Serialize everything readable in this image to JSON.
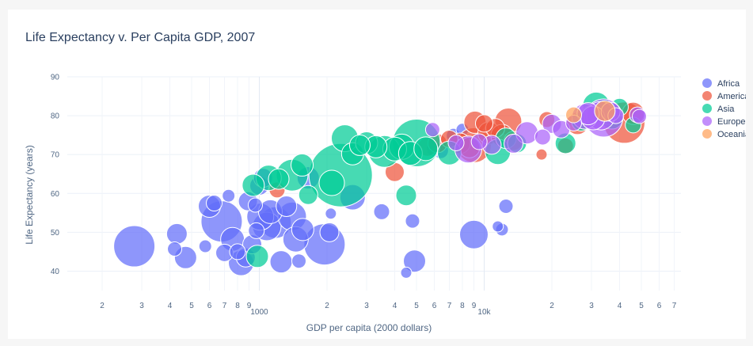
{
  "chart_data": {
    "type": "scatter",
    "title": "Life Expectancy v. Per Capita GDP, 2007",
    "xlabel": "GDP per capita (2000 dollars)",
    "ylabel": "Life Expectancy (years)",
    "x_scale": "log",
    "xlim": [
      140,
      75000
    ],
    "ylim": [
      35,
      90
    ],
    "grid": true,
    "legend_position": "right",
    "x_tick_labels": [
      {
        "v": 200,
        "t": "2"
      },
      {
        "v": 300,
        "t": "3"
      },
      {
        "v": 400,
        "t": "4"
      },
      {
        "v": 500,
        "t": "5"
      },
      {
        "v": 600,
        "t": "6"
      },
      {
        "v": 700,
        "t": "7"
      },
      {
        "v": 800,
        "t": "8"
      },
      {
        "v": 900,
        "t": "9"
      },
      {
        "v": 1000,
        "t": "1000"
      },
      {
        "v": 2000,
        "t": "2"
      },
      {
        "v": 3000,
        "t": "3"
      },
      {
        "v": 4000,
        "t": "4"
      },
      {
        "v": 5000,
        "t": "5"
      },
      {
        "v": 6000,
        "t": "6"
      },
      {
        "v": 7000,
        "t": "7"
      },
      {
        "v": 8000,
        "t": "8"
      },
      {
        "v": 9000,
        "t": "9"
      },
      {
        "v": 10000,
        "t": "10k"
      },
      {
        "v": 20000,
        "t": "2"
      },
      {
        "v": 30000,
        "t": "3"
      },
      {
        "v": 40000,
        "t": "4"
      },
      {
        "v": 50000,
        "t": "5"
      },
      {
        "v": 60000,
        "t": "6"
      },
      {
        "v": 70000,
        "t": "7"
      }
    ],
    "y_ticks": [
      40,
      50,
      60,
      70,
      80,
      90
    ],
    "series": [
      {
        "name": "Africa",
        "color": "#636efa",
        "points": [
          [
            278,
            46.4,
            26
          ],
          [
            420,
            45.7,
            9
          ],
          [
            430,
            49.6,
            13
          ],
          [
            470,
            43.5,
            14
          ],
          [
            575,
            46.4,
            8
          ],
          [
            600,
            56.7,
            14
          ],
          [
            630,
            57.5,
            10
          ],
          [
            680,
            52.8,
            26
          ],
          [
            700,
            44.7,
            11
          ],
          [
            730,
            59.4,
            8
          ],
          [
            760,
            48.2,
            15
          ],
          [
            800,
            45.0,
            10
          ],
          [
            830,
            42.1,
            16
          ],
          [
            870,
            43.5,
            12
          ],
          [
            890,
            58.0,
            12
          ],
          [
            930,
            46.9,
            12
          ],
          [
            960,
            57.0,
            9
          ],
          [
            970,
            50.4,
            10
          ],
          [
            1000,
            62.0,
            12
          ],
          [
            1010,
            54.0,
            17
          ],
          [
            1040,
            64.0,
            12
          ],
          [
            1080,
            51.5,
            18
          ],
          [
            1120,
            55.3,
            15
          ],
          [
            1180,
            52.5,
            20
          ],
          [
            1250,
            42.4,
            14
          ],
          [
            1320,
            56.7,
            13
          ],
          [
            1400,
            54.1,
            18
          ],
          [
            1450,
            48.2,
            16
          ],
          [
            1500,
            42.6,
            9
          ],
          [
            1560,
            50.7,
            14
          ],
          [
            1650,
            64.0,
            14
          ],
          [
            1950,
            46.9,
            26
          ],
          [
            2050,
            50.0,
            12
          ],
          [
            2080,
            54.8,
            7
          ],
          [
            2600,
            59.0,
            16
          ],
          [
            3500,
            55.3,
            10
          ],
          [
            4500,
            39.6,
            7
          ],
          [
            4800,
            52.9,
            9
          ],
          [
            4900,
            42.6,
            14
          ],
          [
            9000,
            49.4,
            18
          ],
          [
            11500,
            51.5,
            7
          ],
          [
            12000,
            50.7,
            8
          ],
          [
            12500,
            56.7,
            9
          ],
          [
            6000,
            71.5,
            10
          ],
          [
            7300,
            74.9,
            9
          ],
          [
            8000,
            76.4,
            8
          ],
          [
            6400,
            71.0,
            10
          ]
        ]
      },
      {
        "name": "Americas",
        "color": "#ef553b",
        "points": [
          [
            1200,
            60.9,
            10
          ],
          [
            4000,
            65.5,
            12
          ],
          [
            5600,
            72.0,
            12
          ],
          [
            6200,
            72.9,
            12
          ],
          [
            7000,
            74.0,
            11
          ],
          [
            7800,
            72.9,
            13
          ],
          [
            8600,
            71.8,
            13
          ],
          [
            9000,
            72.4,
            22
          ],
          [
            9100,
            78.3,
            14
          ],
          [
            10000,
            78.0,
            11
          ],
          [
            10500,
            75.5,
            14
          ],
          [
            11200,
            76.8,
            12
          ],
          [
            12000,
            74.9,
            14
          ],
          [
            12800,
            78.5,
            17
          ],
          [
            13500,
            73.5,
            12
          ],
          [
            18000,
            70.0,
            7
          ],
          [
            19000,
            79.0,
            10
          ],
          [
            23000,
            72.2,
            10
          ],
          [
            26000,
            78.0,
            14
          ],
          [
            31000,
            79.5,
            11
          ],
          [
            36000,
            80.5,
            14
          ],
          [
            42000,
            78.2,
            26
          ],
          [
            46000,
            80.6,
            14
          ]
        ]
      },
      {
        "name": "Asia",
        "color": "#00cc96",
        "points": [
          [
            940,
            62.1,
            14
          ],
          [
            980,
            43.8,
            14
          ],
          [
            1100,
            64.0,
            16
          ],
          [
            1220,
            63.7,
            13
          ],
          [
            1400,
            64.7,
            20
          ],
          [
            1550,
            67.3,
            14
          ],
          [
            1650,
            59.6,
            12
          ],
          [
            2100,
            62.7,
            16
          ],
          [
            2300,
            64.7,
            40
          ],
          [
            2400,
            74.2,
            17
          ],
          [
            2600,
            70.2,
            14
          ],
          [
            2800,
            72.4,
            13
          ],
          [
            3000,
            73.0,
            14
          ],
          [
            3300,
            72.0,
            14
          ],
          [
            3600,
            70.8,
            20
          ],
          [
            4000,
            71.4,
            15
          ],
          [
            4300,
            72.0,
            16
          ],
          [
            4500,
            59.5,
            13
          ],
          [
            4700,
            70.3,
            15
          ],
          [
            5000,
            73.0,
            30
          ],
          [
            5500,
            71.5,
            15
          ],
          [
            7000,
            70.4,
            15
          ],
          [
            11500,
            70.7,
            16
          ],
          [
            12500,
            74.2,
            13
          ],
          [
            14000,
            72.9,
            12
          ],
          [
            23000,
            72.9,
            13
          ],
          [
            27000,
            78.5,
            12
          ],
          [
            30000,
            80.0,
            13
          ],
          [
            31500,
            82.6,
            17
          ],
          [
            37000,
            79.4,
            14
          ],
          [
            40000,
            82.2,
            11
          ],
          [
            46000,
            77.6,
            10
          ]
        ]
      },
      {
        "name": "Europe",
        "color": "#ab63fa",
        "points": [
          [
            5900,
            76.4,
            9
          ],
          [
            7500,
            73.0,
            10
          ],
          [
            8500,
            71.3,
            17
          ],
          [
            9500,
            73.3,
            10
          ],
          [
            10800,
            72.5,
            12
          ],
          [
            13500,
            72.8,
            12
          ],
          [
            15500,
            75.6,
            14
          ],
          [
            18200,
            74.5,
            10
          ],
          [
            20000,
            77.9,
            12
          ],
          [
            22000,
            76.5,
            11
          ],
          [
            25000,
            78.1,
            10
          ],
          [
            28000,
            79.8,
            16
          ],
          [
            29000,
            80.5,
            14
          ],
          [
            30500,
            79.4,
            15
          ],
          [
            33000,
            80.0,
            18
          ],
          [
            34000,
            79.4,
            24
          ],
          [
            36500,
            81.0,
            12
          ],
          [
            38500,
            80.0,
            10
          ],
          [
            48000,
            80.2,
            10
          ],
          [
            49000,
            79.8,
            9
          ]
        ]
      },
      {
        "name": "Oceania",
        "color": "#ffa15a",
        "points": [
          [
            25000,
            80.2,
            10
          ],
          [
            34400,
            81.2,
            13
          ]
        ]
      }
    ]
  }
}
